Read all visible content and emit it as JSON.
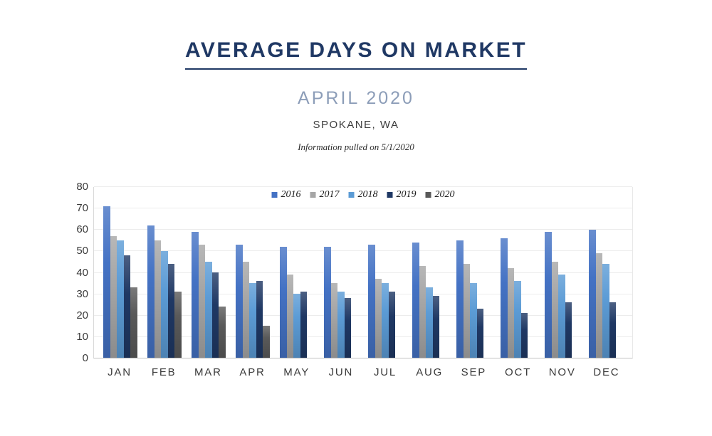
{
  "page": {
    "title": "AVERAGE DAYS ON MARKET",
    "subtitle": "APRIL 2020",
    "location": "SPOKANE, WA",
    "info_note": "Information pulled on 5/1/2020"
  },
  "colors": {
    "title_navy": "#1F3864",
    "subtitle_blue": "#8C9DB8",
    "axis_text": "#3A3A3A",
    "gridline": "#ECECEC",
    "axis_line": "#C2C2C2",
    "background": "#FFFFFF"
  },
  "chart_data": {
    "type": "bar",
    "title": "AVERAGE DAYS ON MARKET",
    "xlabel": "",
    "ylabel": "",
    "ylim": [
      0,
      80
    ],
    "ytick_step": 10,
    "grid": true,
    "legend_position": "top-center",
    "categories": [
      "JAN",
      "FEB",
      "MAR",
      "APR",
      "MAY",
      "JUN",
      "JUL",
      "AUG",
      "SEP",
      "OCT",
      "NOV",
      "DEC"
    ],
    "series": [
      {
        "name": "2016",
        "color": "#4472C4",
        "values": [
          71,
          62,
          59,
          53,
          52,
          52,
          53,
          54,
          55,
          56,
          59,
          60
        ]
      },
      {
        "name": "2017",
        "color": "#A6A6A6",
        "values": [
          57,
          55,
          53,
          45,
          39,
          35,
          37,
          43,
          44,
          42,
          45,
          49
        ]
      },
      {
        "name": "2018",
        "color": "#5B9BD5",
        "values": [
          55,
          50,
          45,
          35,
          30,
          31,
          35,
          33,
          35,
          36,
          39,
          44
        ]
      },
      {
        "name": "2019",
        "color": "#1F3864",
        "values": [
          48,
          44,
          40,
          36,
          31,
          28,
          31,
          29,
          23,
          21,
          26,
          26
        ]
      },
      {
        "name": "2020",
        "color": "#595959",
        "values": [
          33,
          31,
          24,
          15,
          null,
          null,
          null,
          null,
          null,
          null,
          null,
          null
        ]
      }
    ]
  }
}
